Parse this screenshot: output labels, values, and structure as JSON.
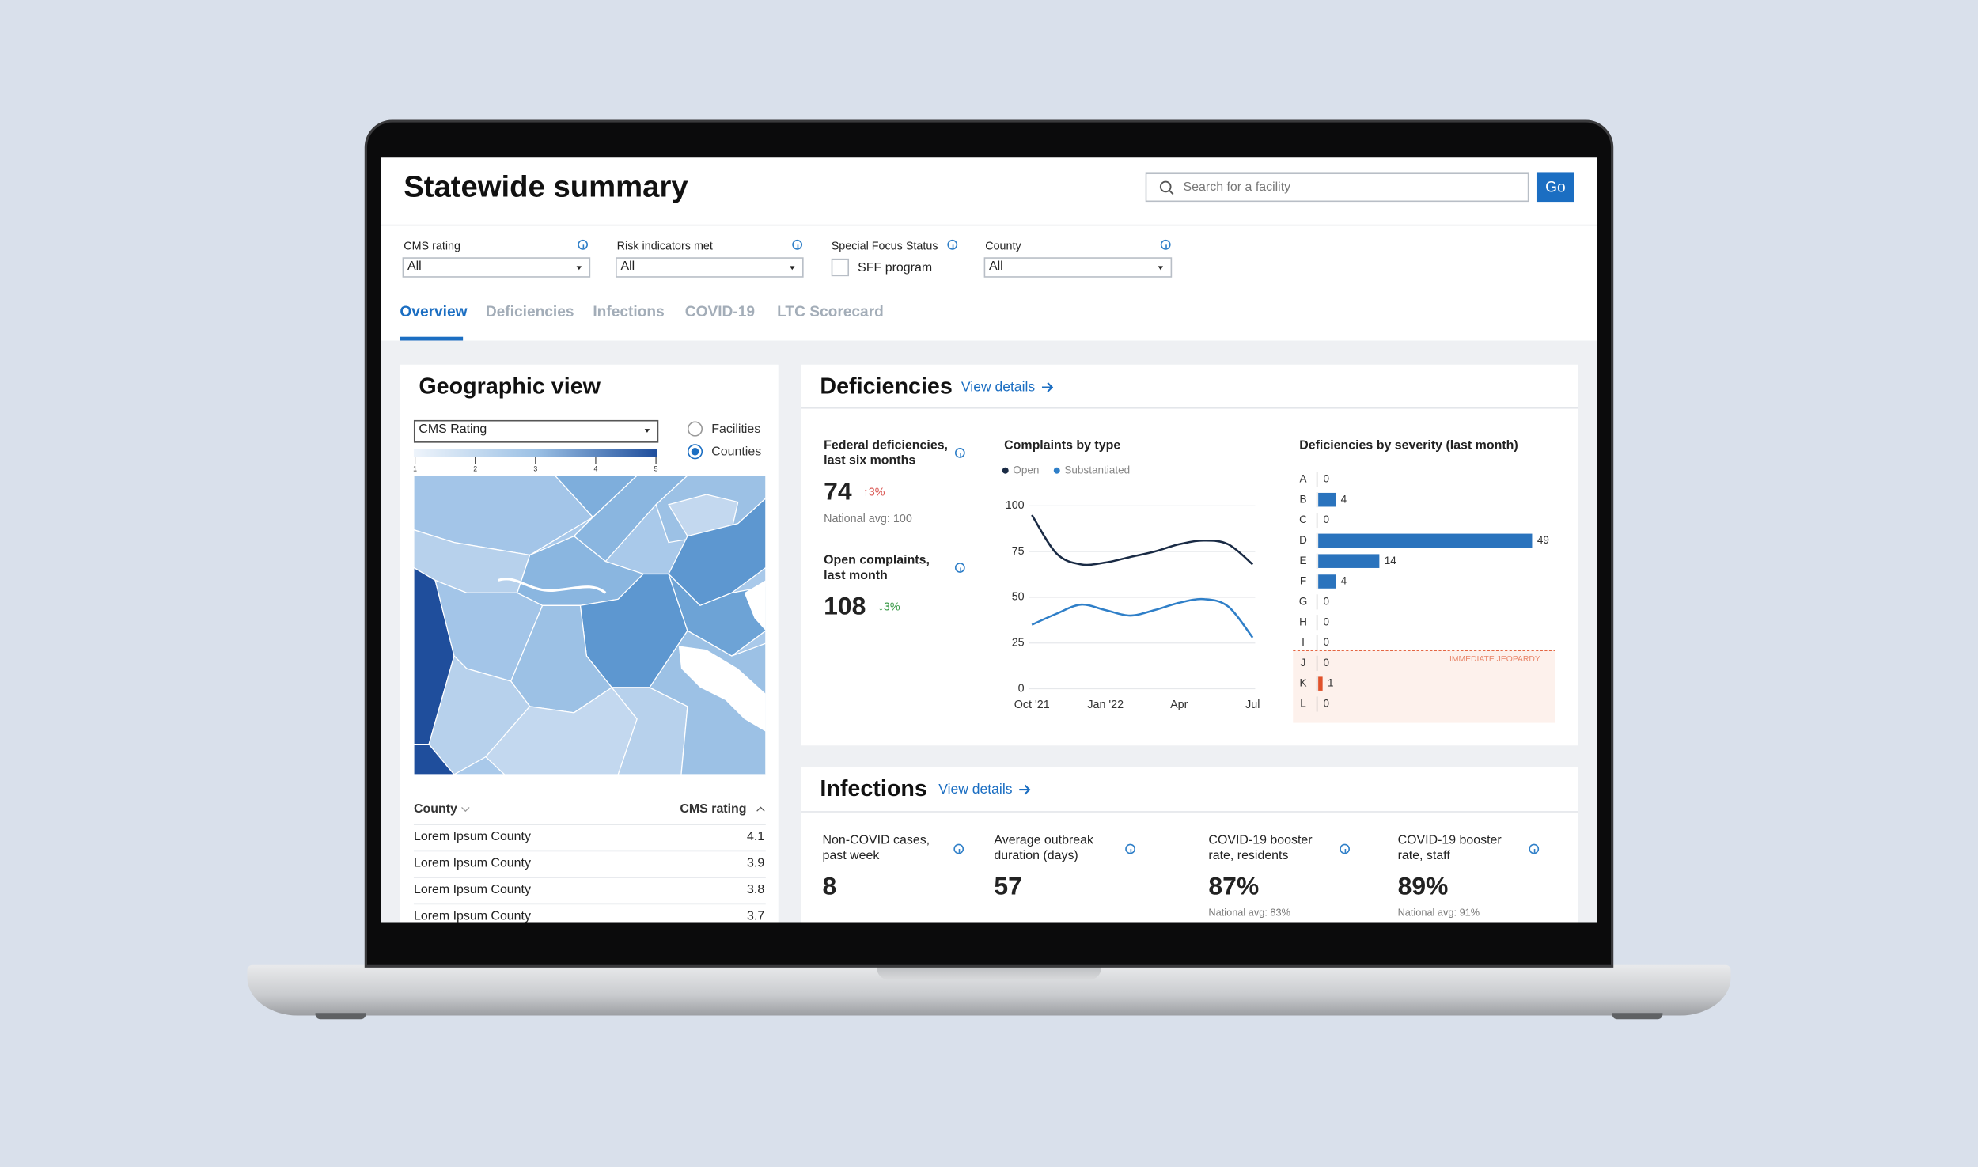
{
  "header": {
    "title": "Statewide summary",
    "search_placeholder": "Search for a facility",
    "go": "Go"
  },
  "filters": [
    {
      "label": "CMS rating",
      "value": "All"
    },
    {
      "label": "Risk indicators met",
      "value": "All"
    },
    {
      "label": "Special Focus Status",
      "value": "SFF program"
    },
    {
      "label": "County",
      "value": "All"
    }
  ],
  "tabs": [
    "Overview",
    "Deficiencies",
    "Infections",
    "COVID-19",
    "LTC Scorecard"
  ],
  "geo": {
    "title": "Geographic view",
    "dropdown": "CMS Rating",
    "scale_ticks": [
      1,
      2,
      3,
      4,
      5
    ],
    "radio": [
      "Facilities",
      "Counties"
    ],
    "table": {
      "headers": [
        "County",
        "CMS rating"
      ],
      "rows": [
        [
          "Lorem Ipsum County",
          "4.1"
        ],
        [
          "Lorem Ipsum County",
          "3.9"
        ],
        [
          "Lorem Ipsum County",
          "3.8"
        ],
        [
          "Lorem Ipsum County",
          "3.7"
        ]
      ]
    }
  },
  "deficiencies": {
    "title": "Deficiencies",
    "link": "View details",
    "kpis": [
      {
        "label": "Federal deficiencies, last six months",
        "value": "74",
        "change": "↑3%",
        "note": "National avg: 100"
      },
      {
        "label": "Open complaints, last month",
        "value": "108",
        "change": "↓3%"
      }
    ],
    "complaints_chart": {
      "type": "line",
      "title": "Complaints by type",
      "categories": [
        "Oct '21",
        null,
        null,
        "Jan '22",
        null,
        null,
        "Apr",
        null,
        null,
        "Jul"
      ],
      "series": [
        {
          "name": "Open",
          "color": "#1a2b45",
          "values": [
            95,
            74,
            68,
            69,
            72,
            75,
            79,
            81,
            79,
            68
          ]
        },
        {
          "name": "Substantiated",
          "color": "#2f7fc8",
          "values": [
            35,
            41,
            46,
            43,
            40,
            43,
            47,
            49,
            45,
            28
          ]
        }
      ],
      "ylim": [
        0,
        100
      ],
      "yticks": [
        0,
        25,
        50,
        75,
        100
      ],
      "grid": true
    },
    "severity_chart": {
      "type": "bar",
      "orientation": "horizontal",
      "title": "Deficiencies by severity (last month)",
      "categories": [
        "A",
        "B",
        "C",
        "D",
        "E",
        "F",
        "G",
        "H",
        "I",
        "J",
        "K",
        "L"
      ],
      "values": [
        0,
        4,
        0,
        49,
        14,
        4,
        0,
        0,
        0,
        0,
        1,
        0
      ],
      "colors": [
        "#2a73bd",
        "#2a73bd",
        "#2a73bd",
        "#2a73bd",
        "#2a73bd",
        "#2a73bd",
        "#2a73bd",
        "#2a73bd",
        "#2a73bd",
        "#2a73bd",
        "#e0522b",
        "#2a73bd"
      ],
      "xlim": [
        0,
        50
      ],
      "annotation": {
        "text": "IMMEDIATE JEOPARDY",
        "from": "J"
      }
    }
  },
  "infections": {
    "title": "Infections",
    "link": "View details",
    "kpis": [
      {
        "label": "Non-COVID cases, past week",
        "value": "8"
      },
      {
        "label": "Average outbreak duration (days)",
        "value": "57"
      },
      {
        "label": "COVID-19 booster rate, residents",
        "value": "87%",
        "note": "National avg: 83%"
      },
      {
        "label": "COVID-19 booster rate, staff",
        "value": "89%",
        "note": "National avg: 91%"
      }
    ]
  }
}
